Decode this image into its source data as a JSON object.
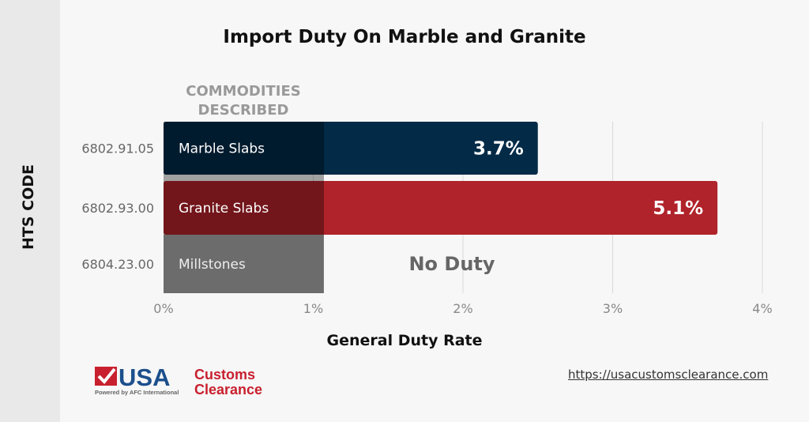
{
  "chart_data": {
    "type": "bar",
    "orientation": "horizontal",
    "title": "Import Duty On Marble and Granite",
    "xlabel": "General Duty Rate",
    "ylabel": "HTS CODE",
    "column_header": "COMMODITIES DESCRIBED",
    "categories": [
      "6802.91.05",
      "6802.93.00",
      "6804.23.00"
    ],
    "commodities": [
      "Marble Slabs",
      "Granite Slabs",
      "Millstones"
    ],
    "values": [
      3.7,
      5.1,
      0
    ],
    "data_labels": [
      "3.7%",
      "5.1%",
      "No Duty"
    ],
    "colors": [
      "#032a47",
      "#b0232a",
      "#a6a6a6"
    ],
    "x_ticks": [
      "0%",
      "1%",
      "2%",
      "3%",
      "4%"
    ],
    "xlim": [
      0,
      4
    ],
    "grid": "vertical"
  },
  "footer": {
    "logo_text": "USA Customs Clearance",
    "logo_sub": "Powered by AFC International",
    "url": "https://usacustomsclearance.com"
  }
}
